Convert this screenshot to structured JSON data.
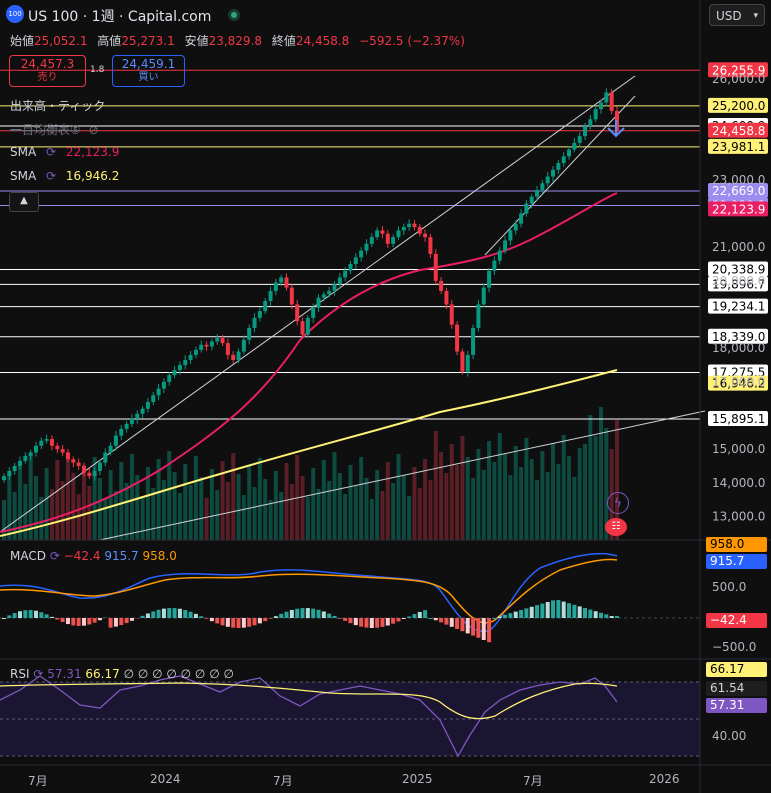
{
  "header": {
    "symbol_title": "US 100 · 1週 · Capital.com",
    "logo_text": "100",
    "currency": "USD",
    "currency_chevron": "chevron-down-icon"
  },
  "ohlc": {
    "open_label": "始値",
    "open": "25,052.1",
    "high_label": "高値",
    "high": "25,273.1",
    "low_label": "安値",
    "low": "23,829.8",
    "close_label": "終値",
    "close": "24,458.8",
    "change": "−592.5 (−2.37%)"
  },
  "trade": {
    "sell_price": "24,457.3",
    "sell_label": "売り",
    "spread": "1.8",
    "buy_price": "24,459.1",
    "buy_label": "買い"
  },
  "indicators": {
    "volume_label": "出来高・ティック",
    "ichimoku_label": "一目均衡表⑤",
    "sma1_label": "SMA",
    "sma1_value": "22,123.9",
    "sma2_label": "SMA",
    "sma2_value": "16,946.2",
    "collapse_icon": "chevron-up-icon"
  },
  "price_axis": {
    "ticks": [
      {
        "v": 26000,
        "t": "26,000.0"
      },
      {
        "v": 23000,
        "t": "23,000.0"
      },
      {
        "v": 21000,
        "t": "21,000.0"
      },
      {
        "v": 20000,
        "t": "20,000.0"
      },
      {
        "v": 18000,
        "t": "18,000.0"
      },
      {
        "v": 17000,
        "t": "17,000.0"
      },
      {
        "v": 15000,
        "t": "15,000.0"
      },
      {
        "v": 14000,
        "t": "14,000.0"
      },
      {
        "v": 13000,
        "t": "13,000.0"
      }
    ],
    "range": [
      12300,
      26800
    ]
  },
  "price_labels": [
    {
      "v": 26255.9,
      "t": "26,255.9",
      "bg": "#f23645",
      "fg": "#ffffff"
    },
    {
      "v": 25200.0,
      "t": "25,200.0",
      "bg": "#fff176",
      "fg": "#000000"
    },
    {
      "v": 24600.9,
      "t": "24,600.9",
      "bg": "#ffffff",
      "fg": "#000000"
    },
    {
      "v": 24458.8,
      "t": "24,458.8",
      "bg": "#f23645",
      "fg": "#ffffff"
    },
    {
      "v": 23981.1,
      "t": "23,981.1",
      "bg": "#fff176",
      "fg": "#000000"
    },
    {
      "v": 22669.0,
      "t": "22,669.0",
      "bg": "#9b8df0",
      "fg": "#ffffff"
    },
    {
      "v": 22239.3,
      "t": "22,239.3",
      "bg": "#9b8df0",
      "fg": "#ffffff"
    },
    {
      "v": 22123.9,
      "t": "22,123.9",
      "bg": "#e91e63",
      "fg": "#ffffff"
    },
    {
      "v": 20338.9,
      "t": "20,338.9",
      "bg": "#ffffff",
      "fg": "#000000"
    },
    {
      "v": 19896.7,
      "t": "19,896.7",
      "bg": "#ffffff",
      "fg": "#000000"
    },
    {
      "v": 19234.1,
      "t": "19,234.1",
      "bg": "#ffffff",
      "fg": "#000000"
    },
    {
      "v": 18339.0,
      "t": "18,339.0",
      "bg": "#ffffff",
      "fg": "#000000"
    },
    {
      "v": 17275.5,
      "t": "17,275.5",
      "bg": "#ffffff",
      "fg": "#000000"
    },
    {
      "v": 16946.2,
      "t": "16,946.2",
      "bg": "#fff176",
      "fg": "#000000"
    },
    {
      "v": 15895.1,
      "t": "15,895.1",
      "bg": "#ffffff",
      "fg": "#000000"
    }
  ],
  "hlines": [
    {
      "v": 26255.9,
      "c": "#f23645"
    },
    {
      "v": 25200.0,
      "c": "#fff176"
    },
    {
      "v": 24600.9,
      "c": "#ffffff"
    },
    {
      "v": 24458.8,
      "c": "#f23645"
    },
    {
      "v": 23981.1,
      "c": "#fff176"
    },
    {
      "v": 22669.0,
      "c": "#9b8df0"
    },
    {
      "v": 22239.3,
      "c": "#9b8df0"
    },
    {
      "v": 20338.9,
      "c": "#ffffff"
    },
    {
      "v": 19896.7,
      "c": "#ffffff"
    },
    {
      "v": 19234.1,
      "c": "#ffffff"
    },
    {
      "v": 18339.0,
      "c": "#ffffff"
    },
    {
      "v": 17275.5,
      "c": "#ffffff"
    },
    {
      "v": 15895.1,
      "c": "#ffffff"
    }
  ],
  "chart_data": {
    "type": "candlestick",
    "interval": "1週",
    "close_series": [
      14200,
      14350,
      14500,
      14650,
      14800,
      14900,
      15100,
      15250,
      15300,
      15100,
      15000,
      14900,
      14700,
      14600,
      14500,
      14300,
      14200,
      14350,
      14600,
      14900,
      15100,
      15400,
      15600,
      15750,
      15900,
      16050,
      16200,
      16400,
      16600,
      16800,
      17000,
      17200,
      17350,
      17500,
      17650,
      17800,
      17950,
      18100,
      18050,
      18200,
      18300,
      18150,
      17800,
      17650,
      17900,
      18250,
      18600,
      18900,
      19100,
      19400,
      19700,
      19950,
      20100,
      19800,
      19300,
      18800,
      18400,
      18900,
      19200,
      19500,
      19600,
      19700,
      19900,
      20100,
      20300,
      20500,
      20700,
      20900,
      21100,
      21300,
      21500,
      21400,
      21100,
      21300,
      21500,
      21600,
      21700,
      21600,
      21400,
      21300,
      20800,
      20000,
      19700,
      19300,
      18700,
      17900,
      17300,
      17800,
      18600,
      19300,
      19800,
      20300,
      20600,
      20900,
      21200,
      21500,
      21700,
      22000,
      22300,
      22500,
      22700,
      22900,
      23100,
      23300,
      23500,
      23700,
      23900,
      24100,
      24300,
      24600,
      24800,
      25100,
      25300,
      25600,
      25050,
      24458.8
    ],
    "sma_pink": {
      "name": "SMA",
      "last": 22123.9,
      "color": "#e91e63"
    },
    "sma_yellow": {
      "name": "SMA",
      "last": 16946.2,
      "color": "#fff176"
    },
    "volume": {
      "label": "出来高・ティック"
    }
  },
  "macd": {
    "label": "MACD",
    "hist": "−42.4",
    "macd": "915.7",
    "signal": "958.0",
    "axis_ticks": [
      {
        "v": 500,
        "t": "500.0"
      },
      {
        "v": -500,
        "t": "−500.0"
      }
    ],
    "labels": [
      {
        "t": "958.0",
        "bg": "#ff9800",
        "fg": "#000000"
      },
      {
        "t": "915.7",
        "bg": "#2962ff",
        "fg": "#ffffff"
      },
      {
        "t": "−42.4",
        "bg": "#f23645",
        "fg": "#ffffff"
      }
    ]
  },
  "rsi": {
    "label": "RSI",
    "rsi": "57.31",
    "ma": "66.17",
    "extra": "∅ ∅ ∅ ∅ ∅ ∅ ∅ ∅",
    "axis_ticks": [
      {
        "t": "40.00"
      }
    ],
    "labels": [
      {
        "t": "66.17",
        "bg": "#fff176",
        "fg": "#000000"
      },
      {
        "t": "61.54",
        "bg": "#1e1e1e",
        "fg": "#d1d4dc"
      },
      {
        "t": "57.31",
        "bg": "#7e57c2",
        "fg": "#ffffff"
      }
    ]
  },
  "time_axis": {
    "labels": [
      {
        "t": "7月",
        "x": 28
      },
      {
        "t": "2024",
        "x": 150
      },
      {
        "t": "7月",
        "x": 273
      },
      {
        "t": "2025",
        "x": 402
      },
      {
        "t": "7月",
        "x": 523
      },
      {
        "t": "2026",
        "x": 649
      }
    ]
  },
  "colors": {
    "up": "#089981",
    "down": "#f23645",
    "bg": "#0f0f0f"
  }
}
